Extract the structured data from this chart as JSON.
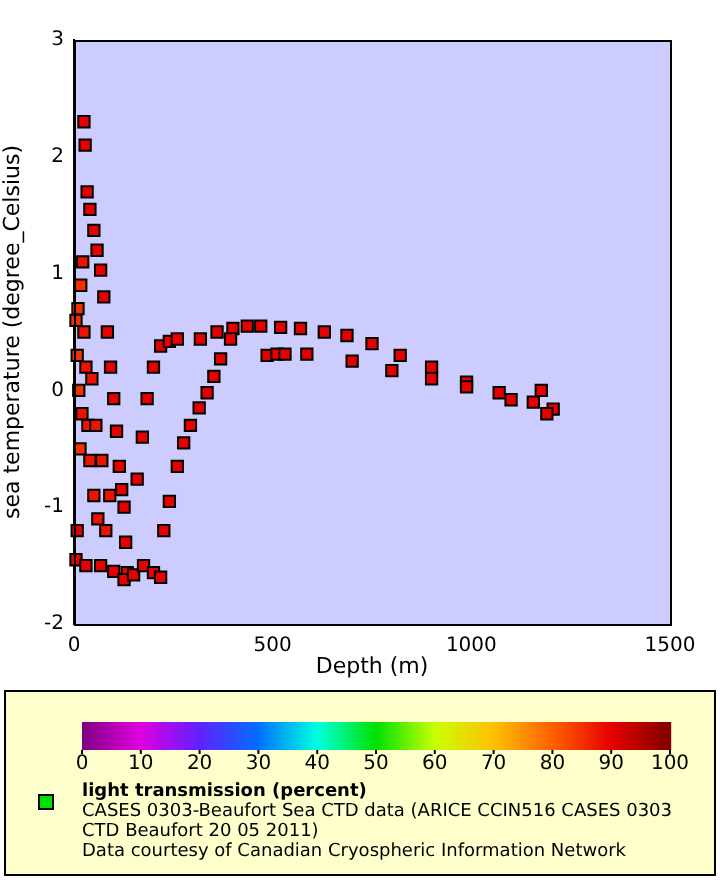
{
  "chart_data": {
    "type": "scatter",
    "xlabel": "Depth (m)",
    "ylabel": "sea temperature (degree_Celsius)",
    "clabel": "light transmission (percent)",
    "annotations": [
      "CASES 0303-Beaufort Sea CTD data (ARICE CCIN516 CASES 0303 CTD Beaufort 20 05 2011)",
      "Data courtesy of Canadian Cryospheric Information Network"
    ],
    "x": [
      25,
      28,
      33,
      40,
      50,
      58,
      67,
      75,
      84,
      92,
      100,
      107,
      114,
      120,
      126,
      130,
      134,
      5,
      8,
      10,
      12,
      15,
      17,
      20,
      22,
      25,
      30,
      35,
      40,
      45,
      50,
      55,
      60,
      70,
      80,
      90,
      5,
      8,
      30,
      67,
      100,
      126,
      150,
      175,
      200,
      218,
      159,
      172,
      184,
      200,
      218,
      240,
      260,
      226,
      240,
      260,
      276,
      293,
      315,
      335,
      352,
      369,
      318,
      360,
      400,
      436,
      470,
      520,
      570,
      630,
      687,
      750,
      821,
      900,
      988,
      1070,
      1156,
      1206,
      486,
      586,
      700,
      800,
      900,
      988,
      1100,
      1190,
      394,
      511,
      531,
      1176
    ],
    "values": [
      2.3,
      2.1,
      1.7,
      1.55,
      1.37,
      1.2,
      1.03,
      0.8,
      0.5,
      0.2,
      -0.07,
      -0.35,
      -0.65,
      -0.85,
      -1.0,
      -1.3,
      -1.56,
      0.6,
      0.3,
      0.7,
      0.0,
      -0.5,
      0.9,
      -0.2,
      1.1,
      0.5,
      0.2,
      -0.3,
      -0.6,
      0.1,
      -0.9,
      -0.3,
      -1.1,
      -0.6,
      -1.2,
      -0.9,
      -1.45,
      -1.2,
      -1.5,
      -1.5,
      -1.55,
      -1.62,
      -1.58,
      -1.5,
      -1.56,
      -1.6,
      -0.76,
      -0.4,
      -0.07,
      0.2,
      0.38,
      0.42,
      0.44,
      -1.2,
      -0.95,
      -0.65,
      -0.45,
      -0.3,
      -0.15,
      -0.02,
      0.12,
      0.27,
      0.44,
      0.5,
      0.53,
      0.55,
      0.55,
      0.54,
      0.53,
      0.5,
      0.47,
      0.4,
      0.3,
      0.2,
      0.07,
      -0.02,
      -0.1,
      -0.16,
      0.3,
      0.31,
      0.25,
      0.17,
      0.1,
      0.03,
      -0.08,
      -0.2,
      0.44,
      0.31,
      0.31,
      0.0
    ],
    "cvalues": [
      90,
      90,
      90,
      90,
      90,
      90,
      90,
      90,
      90,
      90,
      90,
      90,
      90,
      90,
      90,
      90,
      90,
      85,
      85,
      85,
      85,
      85,
      85,
      88,
      88,
      88,
      88,
      88,
      88,
      88,
      88,
      88,
      88,
      88,
      88,
      88,
      90,
      90,
      90,
      90,
      90,
      90,
      90,
      90,
      90,
      90,
      90,
      90,
      90,
      90,
      90,
      90,
      90,
      90,
      90,
      90,
      90,
      90,
      90,
      90,
      90,
      90,
      90,
      90,
      90,
      90,
      90,
      90,
      90,
      90,
      90,
      90,
      90,
      90,
      90,
      90,
      90,
      90,
      90,
      90,
      90,
      90,
      90,
      90,
      90,
      90,
      90,
      90,
      90,
      90
    ],
    "marker": "square",
    "xlim": [
      0,
      1500
    ],
    "ylim": [
      -2,
      3
    ],
    "xticks": [
      0,
      500,
      1000,
      1500
    ],
    "yticks": [
      -2,
      -1,
      0,
      1,
      2,
      3
    ],
    "clim": [
      0,
      100
    ],
    "cticks": [
      0,
      10,
      20,
      30,
      40,
      50,
      60,
      70,
      80,
      90,
      100
    ],
    "grid": false,
    "legend": false
  }
}
